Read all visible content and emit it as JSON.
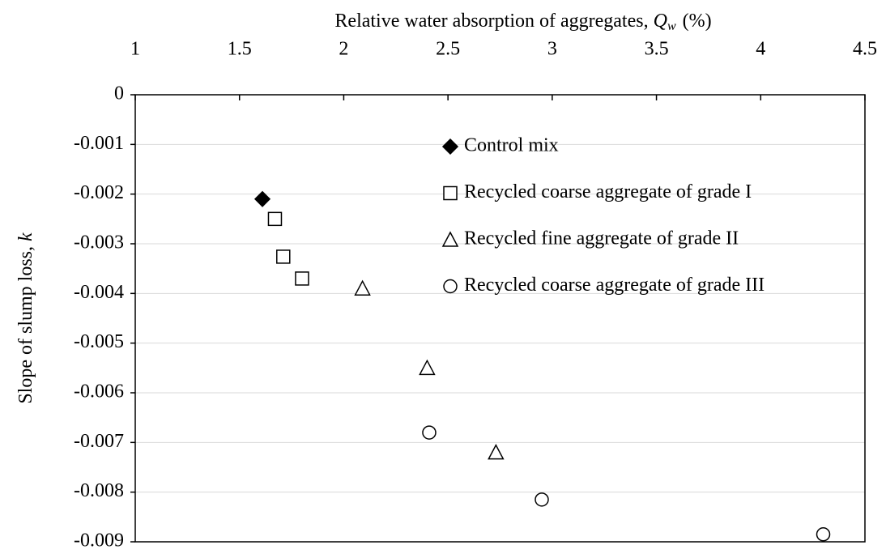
{
  "chart_data": {
    "type": "scatter",
    "x_label": {
      "text": "Relative water absorption of aggregates,",
      "symbol": "Q",
      "subscript": "w",
      "unit": "(%)"
    },
    "y_label": {
      "text": "Slope of slump loss,",
      "symbol": "k"
    },
    "xlim": [
      1,
      4.5
    ],
    "xticks": [
      1,
      1.5,
      2,
      2.5,
      3,
      3.5,
      4,
      4.5
    ],
    "ylim": [
      -0.009,
      0
    ],
    "yticks": [
      0,
      -0.001,
      -0.002,
      -0.003,
      -0.004,
      -0.005,
      -0.006,
      -0.007,
      -0.008,
      -0.009
    ],
    "grid": true,
    "legend": "top-right",
    "series": [
      {
        "name": "Control mix",
        "marker": "diamond",
        "filled": true,
        "color": "#000000",
        "x": [
          1.61
        ],
        "values": [
          -0.0021
        ]
      },
      {
        "name": "Recycled coarse aggregate of grade I",
        "marker": "square",
        "filled": false,
        "color": "#000000",
        "x": [
          1.67,
          1.71,
          1.8
        ],
        "values": [
          -0.0025,
          -0.00326,
          -0.0037
        ]
      },
      {
        "name": "Recycled fine aggregate of grade II",
        "marker": "triangle",
        "filled": false,
        "color": "#000000",
        "x": [
          2.09,
          2.4,
          2.73
        ],
        "values": [
          -0.0039,
          -0.0055,
          -0.0072
        ]
      },
      {
        "name": "Recycled coarse aggregate of grade III",
        "marker": "circle",
        "filled": false,
        "color": "#000000",
        "x": [
          2.41,
          2.95,
          4.3
        ],
        "values": [
          -0.0068,
          -0.00815,
          -0.00885
        ]
      }
    ]
  }
}
